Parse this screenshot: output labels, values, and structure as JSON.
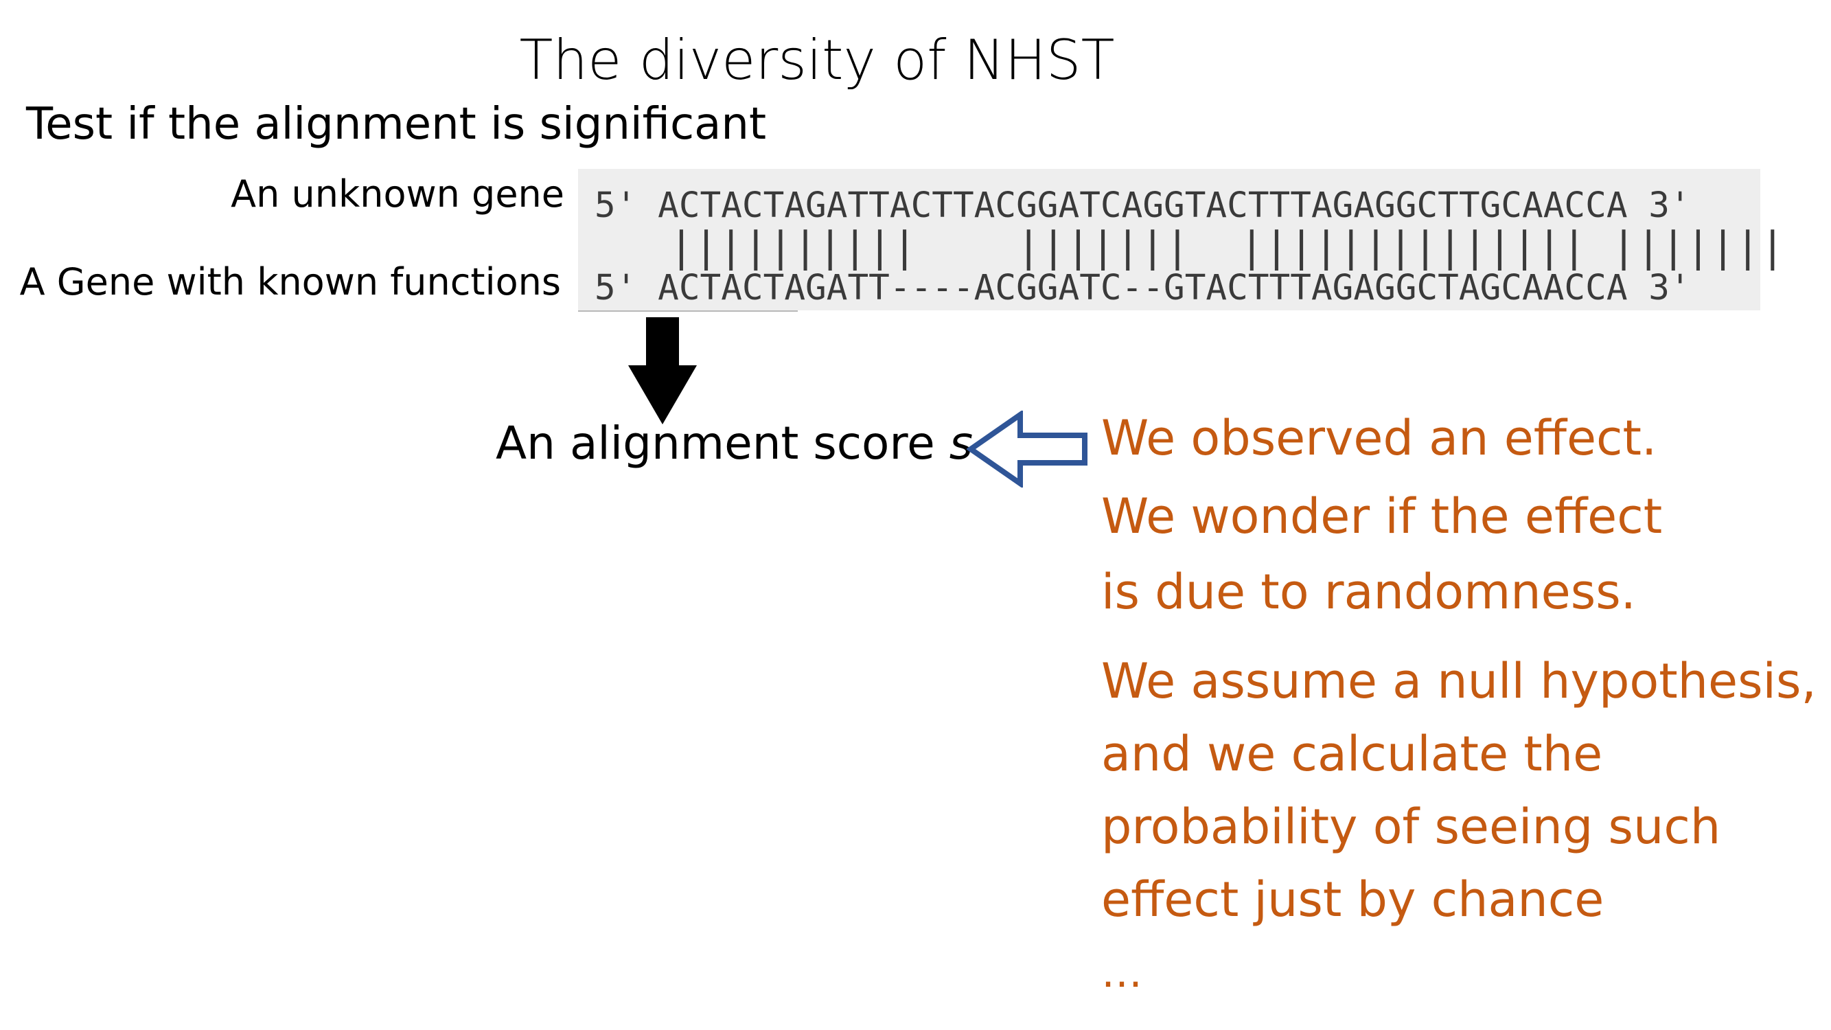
{
  "slide": {
    "title": "The diversity of NHST",
    "subtitle": "Test if the alignment is significant"
  },
  "alignment": {
    "label_unknown": "An unknown gene",
    "label_known": "A Gene with known functions",
    "seq_top": "5' ACTACTAGATTACTTACGGATCAGGTACTTTAGAGGCTTGCAACCA 3'",
    "seq_match": "   ||||||||||    |||||||  |||||||||||||| |||||||",
    "seq_bottom": "5' ACTACTAGATT----ACGGATC--GTACTTTAGAGGCTAGCAACCA 3'"
  },
  "score": {
    "text": "An alignment score ",
    "variable": "s"
  },
  "explanation": {
    "observed": "We observed an effect.",
    "wonder_1": "We wonder if the effect",
    "wonder_2": "is due to randomness.",
    "assume_1": "We assume a null hypothesis,",
    "assume_2": "and we calculate the",
    "assume_3": "probability of seeing such",
    "assume_4": "effect just by chance",
    "ellipsis": "…"
  },
  "icons": {
    "down_arrow": "down-arrow-icon",
    "left_arrow": "hollow-left-arrow-icon"
  },
  "colors": {
    "accent_orange": "#c55a11",
    "arrow_blue": "#2f5597",
    "alignment_bg": "#eeeeee"
  }
}
